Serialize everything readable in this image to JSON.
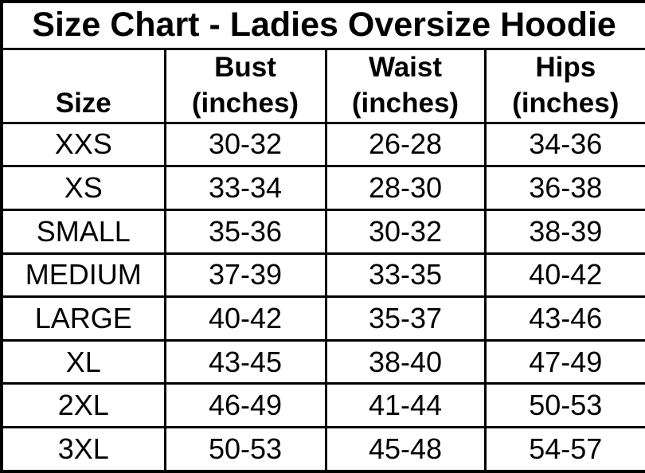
{
  "title": "Size Chart - Ladies Oversize Hoodie",
  "colors": {
    "background": "#ffffff",
    "text": "#000000",
    "border": "#000000"
  },
  "header": {
    "size_label": "Size",
    "bust_label": "Bust",
    "waist_label": "Waist",
    "hips_label": "Hips",
    "unit": "(inches)"
  },
  "rows": [
    {
      "size": "XXS",
      "bust": "30-32",
      "waist": "26-28",
      "hips": "34-36"
    },
    {
      "size": "XS",
      "bust": "33-34",
      "waist": "28-30",
      "hips": "36-38"
    },
    {
      "size": "SMALL",
      "bust": "35-36",
      "waist": "30-32",
      "hips": "38-39"
    },
    {
      "size": "MEDIUM",
      "bust": "37-39",
      "waist": "33-35",
      "hips": "40-42"
    },
    {
      "size": "LARGE",
      "bust": "40-42",
      "waist": "35-37",
      "hips": "43-46"
    },
    {
      "size": "XL",
      "bust": "43-45",
      "waist": "38-40",
      "hips": "47-49"
    },
    {
      "size": "2XL",
      "bust": "46-49",
      "waist": "41-44",
      "hips": "50-53"
    },
    {
      "size": "3XL",
      "bust": "50-53",
      "waist": "45-48",
      "hips": "54-57"
    }
  ]
}
